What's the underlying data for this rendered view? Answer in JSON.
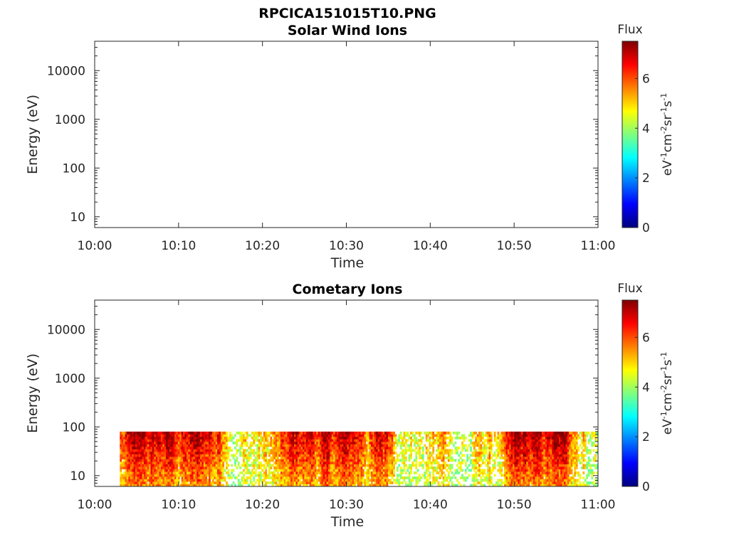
{
  "figure_title": "RPCICA151015T10.PNG",
  "colormap": [
    "#00007f",
    "#0000ff",
    "#007fff",
    "#00ffff",
    "#7fff7f",
    "#ffff00",
    "#ff7f00",
    "#ff0000",
    "#7f0000"
  ],
  "chart_data": [
    {
      "type": "heatmap",
      "title": "Solar Wind Ions",
      "xlabel": "Time",
      "ylabel": "Energy (eV)",
      "xticks": [
        "10:00",
        "10:10",
        "10:20",
        "10:30",
        "10:40",
        "10:50",
        "11:00"
      ],
      "xlim": [
        "10:00",
        "11:00"
      ],
      "yticks": [
        "10",
        "100",
        "1000",
        "10000"
      ],
      "ytick_values": [
        10,
        100,
        1000,
        10000
      ],
      "yscale": "log",
      "ylim": [
        6,
        40000
      ],
      "data": [],
      "colorbar": {
        "title": "Flux",
        "label": "eV-1cm-2sr-1s-1",
        "ticks": [
          "0",
          "2",
          "4",
          "6"
        ],
        "range": [
          0,
          7.5
        ]
      }
    },
    {
      "type": "heatmap",
      "title": "Cometary Ions",
      "xlabel": "Time",
      "ylabel": "Energy (eV)",
      "xticks": [
        "10:00",
        "10:10",
        "10:20",
        "10:30",
        "10:40",
        "10:50",
        "11:00"
      ],
      "xlim": [
        "10:00",
        "11:00"
      ],
      "yticks": [
        "10",
        "100",
        "1000",
        "10000"
      ],
      "ytick_values": [
        10,
        100,
        1000,
        10000
      ],
      "yscale": "log",
      "ylim": [
        6,
        40000
      ],
      "data_extent": {
        "time": [
          "10:03",
          "11:00"
        ],
        "energy_eV": [
          6,
          80
        ]
      },
      "flux_range": [
        3.5,
        7.5
      ],
      "colorbar": {
        "title": "Flux",
        "label": "eV-1cm-2sr-1s-1",
        "ticks": [
          "0",
          "2",
          "4",
          "6"
        ],
        "range": [
          0,
          7.5
        ]
      }
    }
  ]
}
